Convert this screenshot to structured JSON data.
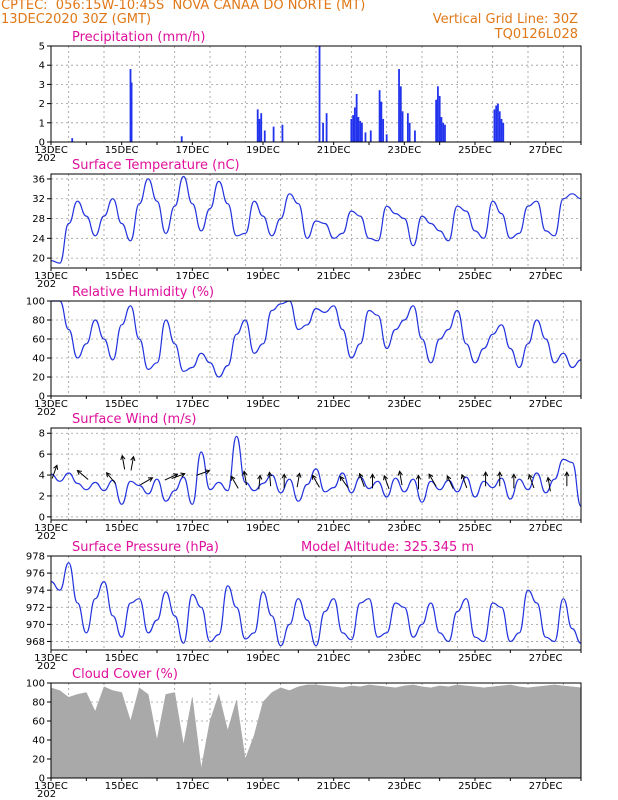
{
  "header": {
    "line1_left": "CPTEC:  056:15W-10:45S  NOVA CANAA DO NORTE (MT)",
    "line2_left": "13DEC2020 30Z (GMT)",
    "line2_right": "Vertical Grid Line: 30Z",
    "line3_right": "TQ0126L028"
  },
  "colors": {
    "header": "#e07818",
    "title": "#e0109c",
    "line": "#2233dd",
    "bar": "#2233ee",
    "cloud": "#a9a9a9"
  },
  "chart_data": [
    {
      "type": "bar",
      "title": "Precipitation (mm/h)",
      "ylim": [
        0,
        5
      ],
      "yticks": [
        0,
        1,
        2,
        3,
        4,
        5
      ],
      "x_label_truncated": "202",
      "xticks": [
        "13DEC",
        "15DEC",
        "17DEC",
        "19DEC",
        "21DEC",
        "23DEC",
        "25DEC",
        "27DEC"
      ],
      "points": [
        [
          0.6,
          0.2
        ],
        [
          2.25,
          3.8
        ],
        [
          2.28,
          3.1
        ],
        [
          3.7,
          0.3
        ],
        [
          5.85,
          1.7
        ],
        [
          5.9,
          1.2
        ],
        [
          5.95,
          1.5
        ],
        [
          6.05,
          0.6
        ],
        [
          6.3,
          0.8
        ],
        [
          6.55,
          0.9
        ],
        [
          7.6,
          5.0
        ],
        [
          7.7,
          1.0
        ],
        [
          7.8,
          1.5
        ],
        [
          8.5,
          1.2
        ],
        [
          8.55,
          1.4
        ],
        [
          8.6,
          1.8
        ],
        [
          8.65,
          2.5
        ],
        [
          8.7,
          1.3
        ],
        [
          8.75,
          1.1
        ],
        [
          8.8,
          1.0
        ],
        [
          8.9,
          0.5
        ],
        [
          9.05,
          0.6
        ],
        [
          9.3,
          2.7
        ],
        [
          9.35,
          2.1
        ],
        [
          9.4,
          1.2
        ],
        [
          9.5,
          0.4
        ],
        [
          9.85,
          3.8
        ],
        [
          9.9,
          2.9
        ],
        [
          9.95,
          1.6
        ],
        [
          10.1,
          1.5
        ],
        [
          10.15,
          1.0
        ],
        [
          10.3,
          0.6
        ],
        [
          10.9,
          2.2
        ],
        [
          10.95,
          2.9
        ],
        [
          11.0,
          2.4
        ],
        [
          11.05,
          1.3
        ],
        [
          11.1,
          1.0
        ],
        [
          11.15,
          0.9
        ],
        [
          12.55,
          1.7
        ],
        [
          12.6,
          1.9
        ],
        [
          12.65,
          2.0
        ],
        [
          12.7,
          1.6
        ],
        [
          12.75,
          1.2
        ],
        [
          12.8,
          1.0
        ]
      ]
    },
    {
      "type": "line",
      "title": "Surface Temperature (nC)",
      "ylim": [
        18,
        37
      ],
      "yticks": [
        20,
        24,
        28,
        32,
        36
      ],
      "x_label_truncated": "202",
      "xticks": [
        "13DEC",
        "15DEC",
        "17DEC",
        "19DEC",
        "21DEC",
        "23DEC",
        "25DEC",
        "27DEC"
      ],
      "x": [
        0.0,
        0.25,
        0.5,
        0.75,
        1.0,
        1.25,
        1.5,
        1.75,
        2.0,
        2.25,
        2.5,
        2.75,
        3.0,
        3.25,
        3.5,
        3.75,
        4.0,
        4.25,
        4.5,
        4.75,
        5.0,
        5.25,
        5.5,
        5.75,
        6.0,
        6.25,
        6.5,
        6.75,
        7.0,
        7.25,
        7.5,
        7.75,
        8.0,
        8.25,
        8.5,
        8.75,
        9.0,
        9.25,
        9.5,
        9.75,
        10.0,
        10.25,
        10.5,
        10.75,
        11.0,
        11.25,
        11.5,
        11.75,
        12.0,
        12.25,
        12.5,
        12.75,
        13.0,
        13.25,
        13.5,
        13.75,
        14.0,
        14.25,
        14.5,
        14.75,
        15.0
      ],
      "y": [
        19.5,
        19.0,
        27.0,
        31.5,
        28.5,
        24.5,
        28.5,
        32.0,
        27.0,
        23.5,
        31.0,
        36.0,
        31.5,
        25.0,
        30.5,
        36.5,
        31.0,
        25.5,
        30.0,
        35.5,
        31.0,
        24.5,
        25.0,
        31.5,
        28.5,
        24.5,
        28.0,
        33.0,
        31.0,
        24.0,
        27.5,
        27.0,
        24.0,
        25.0,
        29.5,
        28.5,
        24.0,
        23.5,
        30.5,
        29.0,
        28.0,
        22.5,
        28.5,
        27.0,
        25.5,
        23.5,
        30.5,
        29.5,
        25.5,
        24.0,
        31.5,
        29.0,
        24.0,
        25.0,
        30.5,
        31.5,
        25.5,
        24.5,
        32.0,
        33.0,
        32.0
      ]
    },
    {
      "type": "line",
      "title": "Relative Humidity (%)",
      "ylim": [
        0,
        100
      ],
      "yticks": [
        0,
        20,
        40,
        60,
        80,
        100
      ],
      "x_label_truncated": "202",
      "xticks": [
        "13DEC",
        "15DEC",
        "17DEC",
        "19DEC",
        "21DEC",
        "23DEC",
        "25DEC",
        "27DEC"
      ],
      "x": [
        0.0,
        0.25,
        0.5,
        0.75,
        1.0,
        1.25,
        1.5,
        1.75,
        2.0,
        2.25,
        2.5,
        2.75,
        3.0,
        3.25,
        3.5,
        3.75,
        4.0,
        4.25,
        4.5,
        4.75,
        5.0,
        5.25,
        5.5,
        5.75,
        6.0,
        6.25,
        6.5,
        6.75,
        7.0,
        7.25,
        7.5,
        7.75,
        8.0,
        8.25,
        8.5,
        8.75,
        9.0,
        9.25,
        9.5,
        9.75,
        10.0,
        10.25,
        10.5,
        10.75,
        11.0,
        11.25,
        11.5,
        11.75,
        12.0,
        12.25,
        12.5,
        12.75,
        13.0,
        13.25,
        13.5,
        13.75,
        14.0,
        14.25,
        14.5,
        14.75,
        15.0
      ],
      "y": [
        100,
        100,
        70,
        40,
        55,
        80,
        60,
        38,
        75,
        95,
        60,
        28,
        35,
        80,
        55,
        26,
        30,
        45,
        35,
        20,
        32,
        65,
        80,
        45,
        55,
        90,
        97,
        100,
        70,
        75,
        92,
        88,
        95,
        70,
        40,
        55,
        90,
        85,
        50,
        70,
        80,
        95,
        60,
        35,
        60,
        70,
        90,
        55,
        35,
        50,
        65,
        75,
        50,
        30,
        55,
        80,
        60,
        35,
        45,
        30,
        38
      ]
    },
    {
      "type": "line",
      "title": "Surface Wind (m/s)",
      "ylim": [
        -0.3,
        8.5
      ],
      "yticks": [
        0,
        2,
        4,
        6,
        8
      ],
      "x_label_truncated": "202",
      "xticks": [
        "13DEC",
        "15DEC",
        "17DEC",
        "19DEC",
        "21DEC",
        "23DEC",
        "25DEC",
        "27DEC"
      ],
      "x": [
        0.0,
        0.25,
        0.5,
        0.75,
        1.0,
        1.25,
        1.5,
        1.75,
        2.0,
        2.25,
        2.5,
        2.75,
        3.0,
        3.25,
        3.5,
        3.75,
        4.0,
        4.25,
        4.5,
        4.75,
        5.0,
        5.25,
        5.5,
        5.75,
        6.0,
        6.25,
        6.5,
        6.75,
        7.0,
        7.25,
        7.5,
        7.75,
        8.0,
        8.25,
        8.5,
        8.75,
        9.0,
        9.25,
        9.5,
        9.75,
        10.0,
        10.25,
        10.5,
        10.75,
        11.0,
        11.25,
        11.5,
        11.75,
        12.0,
        12.25,
        12.5,
        12.75,
        13.0,
        13.25,
        13.5,
        13.75,
        14.0,
        14.25,
        14.5,
        14.75,
        15.0
      ],
      "y": [
        4.1,
        3.4,
        4.2,
        3.2,
        2.6,
        3.3,
        2.5,
        3.5,
        1.2,
        3.4,
        3.0,
        2.2,
        3.6,
        1.5,
        2.5,
        3.8,
        1.2,
        6.2,
        2.6,
        3.3,
        2.5,
        7.7,
        3.3,
        2.5,
        3.2,
        4.0,
        2.3,
        3.6,
        1.5,
        3.1,
        4.6,
        2.4,
        2.8,
        4.2,
        2.3,
        3.8,
        2.7,
        3.4,
        1.9,
        3.7,
        2.4,
        3.6,
        1.4,
        3.4,
        2.6,
        3.5,
        2.4,
        3.8,
        1.9,
        3.4,
        2.8,
        3.7,
        1.7,
        3.6,
        2.6,
        4.2,
        2.3,
        3.6,
        5.5,
        5.2,
        1.0
      ],
      "arrows": [
        [
          0.1,
          4.3,
          20
        ],
        [
          0.9,
          4.0,
          -50
        ],
        [
          1.7,
          3.7,
          -40
        ],
        [
          2.05,
          5.2,
          -10
        ],
        [
          2.3,
          5.1,
          10
        ],
        [
          2.7,
          3.4,
          60
        ],
        [
          3.4,
          3.8,
          65
        ],
        [
          3.6,
          3.9,
          70
        ],
        [
          4.3,
          4.2,
          70
        ],
        [
          5.2,
          3.3,
          -30
        ],
        [
          5.5,
          3.7,
          -10
        ],
        [
          5.9,
          3.3,
          5
        ],
        [
          6.2,
          3.6,
          -5
        ],
        [
          6.6,
          3.4,
          0
        ],
        [
          7.0,
          3.5,
          10
        ],
        [
          7.5,
          3.4,
          -30
        ],
        [
          8.3,
          3.3,
          -35
        ],
        [
          8.8,
          3.5,
          -20
        ],
        [
          9.1,
          3.4,
          0
        ],
        [
          9.5,
          3.3,
          -20
        ],
        [
          9.9,
          3.7,
          -10
        ],
        [
          10.4,
          3.3,
          0
        ],
        [
          10.8,
          3.5,
          -30
        ],
        [
          11.3,
          3.3,
          -25
        ],
        [
          11.7,
          3.4,
          -20
        ],
        [
          12.3,
          3.6,
          0
        ],
        [
          12.7,
          3.6,
          0
        ],
        [
          13.1,
          3.4,
          0
        ],
        [
          13.6,
          3.4,
          -20
        ],
        [
          14.1,
          3.1,
          -10
        ],
        [
          14.6,
          3.6,
          0
        ]
      ]
    },
    {
      "type": "line",
      "title": "Surface Pressure (hPa)",
      "annotation": "Model Altitude: 325.345 m",
      "ylim": [
        967,
        978
      ],
      "yticks": [
        968,
        970,
        972,
        974,
        976,
        978
      ],
      "x_label_truncated": "202",
      "xticks": [
        "13DEC",
        "15DEC",
        "17DEC",
        "19DEC",
        "21DEC",
        "23DEC",
        "25DEC",
        "27DEC"
      ],
      "x": [
        0.0,
        0.25,
        0.5,
        0.75,
        1.0,
        1.25,
        1.5,
        1.75,
        2.0,
        2.25,
        2.5,
        2.75,
        3.0,
        3.25,
        3.5,
        3.75,
        4.0,
        4.25,
        4.5,
        4.75,
        5.0,
        5.25,
        5.5,
        5.75,
        6.0,
        6.25,
        6.5,
        6.75,
        7.0,
        7.25,
        7.5,
        7.75,
        8.0,
        8.25,
        8.5,
        8.75,
        9.0,
        9.25,
        9.5,
        9.75,
        10.0,
        10.25,
        10.5,
        10.75,
        11.0,
        11.25,
        11.5,
        11.75,
        12.0,
        12.25,
        12.5,
        12.75,
        13.0,
        13.25,
        13.5,
        13.75,
        14.0,
        14.25,
        14.5,
        14.75,
        15.0
      ],
      "y": [
        975.0,
        974.0,
        977.2,
        972.5,
        969.0,
        973.0,
        975.0,
        971.0,
        968.5,
        972.5,
        973.0,
        969.0,
        970.5,
        973.8,
        971.0,
        967.8,
        973.5,
        972.0,
        968.0,
        968.8,
        974.5,
        972.0,
        968.3,
        969.0,
        973.8,
        971.0,
        967.5,
        970.0,
        973.0,
        970.5,
        967.5,
        971.5,
        973.0,
        969.0,
        968.2,
        972.5,
        973.0,
        968.5,
        969.0,
        972.5,
        972.0,
        968.5,
        970.0,
        972.5,
        969.0,
        968.0,
        971.5,
        973.0,
        968.5,
        968.0,
        972.5,
        972.0,
        968.0,
        969.0,
        974.0,
        972.5,
        968.5,
        968.0,
        973.0,
        969.5,
        967.8
      ]
    },
    {
      "type": "area",
      "title": "Cloud Cover (%)",
      "ylim": [
        0,
        100
      ],
      "yticks": [
        0,
        20,
        40,
        60,
        80,
        100
      ],
      "x_label_truncated": "202",
      "xticks": [
        "13DEC",
        "15DEC",
        "17DEC",
        "19DEC",
        "21DEC",
        "23DEC",
        "25DEC",
        "27DEC"
      ],
      "x": [
        0.0,
        0.25,
        0.5,
        0.75,
        1.0,
        1.25,
        1.5,
        1.75,
        2.0,
        2.25,
        2.5,
        2.75,
        3.0,
        3.25,
        3.5,
        3.75,
        4.0,
        4.25,
        4.5,
        4.75,
        5.0,
        5.25,
        5.5,
        5.75,
        6.0,
        6.25,
        6.5,
        6.75,
        7.0,
        7.25,
        7.5,
        7.75,
        8.0,
        8.25,
        8.5,
        8.75,
        9.0,
        9.25,
        9.5,
        9.75,
        10.0,
        10.25,
        10.5,
        10.75,
        11.0,
        11.25,
        11.5,
        11.75,
        12.0,
        12.25,
        12.5,
        12.75,
        13.0,
        13.25,
        13.5,
        13.75,
        14.0,
        14.25,
        14.5,
        14.75,
        15.0
      ],
      "y": [
        95,
        92,
        85,
        88,
        90,
        70,
        96,
        92,
        90,
        60,
        95,
        88,
        40,
        88,
        90,
        35,
        85,
        10,
        60,
        88,
        50,
        82,
        20,
        45,
        80,
        90,
        95,
        92,
        96,
        98,
        98,
        97,
        96,
        95,
        97,
        96,
        98,
        97,
        96,
        95,
        97,
        98,
        96,
        95,
        97,
        96,
        98,
        97,
        96,
        95,
        96,
        97,
        98,
        96,
        95,
        96,
        97,
        98,
        97,
        96,
        95
      ]
    }
  ]
}
